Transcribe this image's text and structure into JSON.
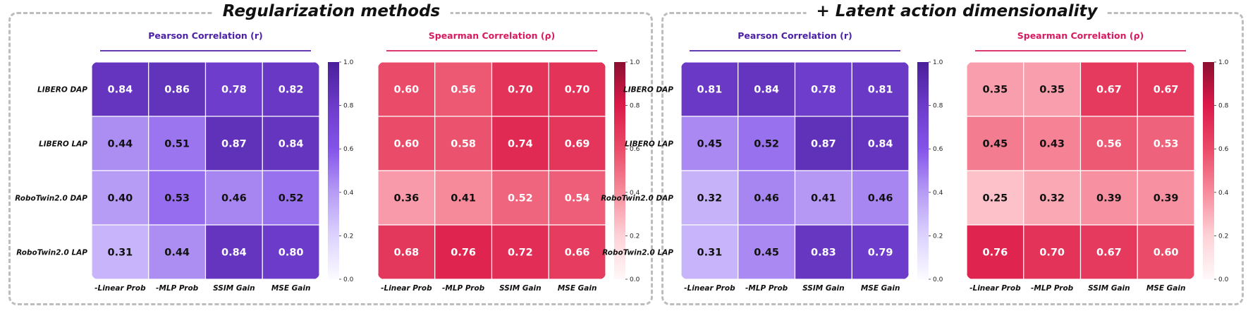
{
  "panels": [
    {
      "title": "Regularization methods"
    },
    {
      "title": "+ Latent action dimensionality"
    }
  ],
  "colorbar_ticks": [
    "0.0",
    "0.2",
    "0.4",
    "0.6",
    "0.8",
    "1.0"
  ],
  "colors": {
    "pearson_title": "#4b1fa6",
    "spearman_title": "#d81b60",
    "pearson_scale": [
      "#fcfbff",
      "#dcd2ff",
      "#b69cf5",
      "#8454ea",
      "#6c3bc9",
      "#4a1f9a"
    ],
    "spearman_scale": [
      "#fff8f9",
      "#fdd2d7",
      "#f78c9d",
      "#ea4b68",
      "#dc1a4a",
      "#8c0f30"
    ]
  },
  "chart_data": [
    {
      "type": "heatmap",
      "panel": 0,
      "metric": "pearson",
      "title": "Pearson Correlation (r)",
      "rows": [
        "LIBERO DAP",
        "LIBERO LAP",
        "RoboTwin2.0 DAP",
        "RoboTwin2.0 LAP"
      ],
      "columns": [
        "-Linear Prob",
        "-MLP Prob",
        "SSIM Gain",
        "MSE Gain"
      ],
      "values": [
        [
          0.84,
          0.86,
          0.78,
          0.82
        ],
        [
          0.44,
          0.51,
          0.87,
          0.84
        ],
        [
          0.4,
          0.53,
          0.46,
          0.52
        ],
        [
          0.31,
          0.44,
          0.84,
          0.8
        ]
      ],
      "vmin": 0.0,
      "vmax": 1.0
    },
    {
      "type": "heatmap",
      "panel": 0,
      "metric": "spearman",
      "title": "Spearman Correlation (ρ)",
      "rows": [
        "LIBERO DAP",
        "LIBERO LAP",
        "RoboTwin2.0 DAP",
        "RoboTwin2.0 LAP"
      ],
      "columns": [
        "-Linear Prob",
        "-MLP Prob",
        "SSIM Gain",
        "MSE Gain"
      ],
      "values": [
        [
          0.6,
          0.56,
          0.7,
          0.7
        ],
        [
          0.6,
          0.58,
          0.74,
          0.69
        ],
        [
          0.36,
          0.41,
          0.52,
          0.54
        ],
        [
          0.68,
          0.76,
          0.72,
          0.66
        ]
      ],
      "vmin": 0.0,
      "vmax": 1.0
    },
    {
      "type": "heatmap",
      "panel": 1,
      "metric": "pearson",
      "title": "Pearson Correlation (r)",
      "rows": [
        "LIBERO DAP",
        "LIBERO LAP",
        "RoboTwin2.0 DAP",
        "RoboTwin2.0 LAP"
      ],
      "columns": [
        "-Linear Prob",
        "-MLP Prob",
        "SSIM Gain",
        "MSE Gain"
      ],
      "values": [
        [
          0.81,
          0.84,
          0.78,
          0.81
        ],
        [
          0.45,
          0.52,
          0.87,
          0.84
        ],
        [
          0.32,
          0.46,
          0.41,
          0.46
        ],
        [
          0.31,
          0.45,
          0.83,
          0.79
        ]
      ],
      "vmin": 0.0,
      "vmax": 1.0
    },
    {
      "type": "heatmap",
      "panel": 1,
      "metric": "spearman",
      "title": "Spearman Correlation (ρ)",
      "rows": [
        "LIBERO DAP",
        "LIBERO LAP",
        "RoboTwin2.0 DAP",
        "RoboTwin2.0 LAP"
      ],
      "columns": [
        "-Linear Prob",
        "-MLP Prob",
        "SSIM Gain",
        "MSE Gain"
      ],
      "values": [
        [
          0.35,
          0.35,
          0.67,
          0.67
        ],
        [
          0.45,
          0.43,
          0.56,
          0.53
        ],
        [
          0.25,
          0.32,
          0.39,
          0.39
        ],
        [
          0.76,
          0.7,
          0.67,
          0.6
        ]
      ],
      "vmin": 0.0,
      "vmax": 1.0
    }
  ]
}
